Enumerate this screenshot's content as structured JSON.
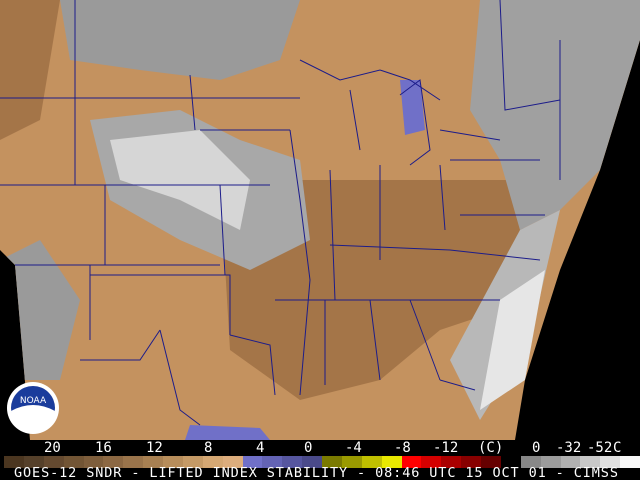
{
  "title": "GOES-12 SNDR - LIFTED INDEX STABILITY - 08:46 UTC 15 OCT 01 - CIMSS",
  "logo_text": "NOAA",
  "scale": {
    "labels": [
      "20",
      "16",
      "12",
      "8",
      "4",
      "0",
      "-4",
      "-8",
      "-12",
      "(C)",
      "0",
      "-32",
      "-52",
      "C"
    ],
    "colors": [
      "#4b3620",
      "#55402a",
      "#654a30",
      "#725535",
      "#7e5e3c",
      "#8c6843",
      "#9a744b",
      "#a88052",
      "#b78d5b",
      "#c59a66",
      "#d4a773",
      "#dcad7d",
      "#7070c8",
      "#6363b4",
      "#56569f",
      "#4a4a8a",
      "#7a7a00",
      "#9a9a00",
      "#c0c000",
      "#e8e800",
      "#ff0000",
      "#d40000",
      "#aa0000",
      "#880000",
      "#660000",
      "#000000",
      "#888888",
      "#9c9c9c",
      "#b0b0b0",
      "#c8c8c8",
      "#e0e0e0",
      "#f8f8f8"
    ]
  },
  "colors": {
    "land_stable": "#c4925f",
    "land_dark": "#a47548",
    "cloud_gray": "#9a9a9a",
    "cloud_light": "#d8d8d8",
    "borders": "#1c1c8a"
  }
}
